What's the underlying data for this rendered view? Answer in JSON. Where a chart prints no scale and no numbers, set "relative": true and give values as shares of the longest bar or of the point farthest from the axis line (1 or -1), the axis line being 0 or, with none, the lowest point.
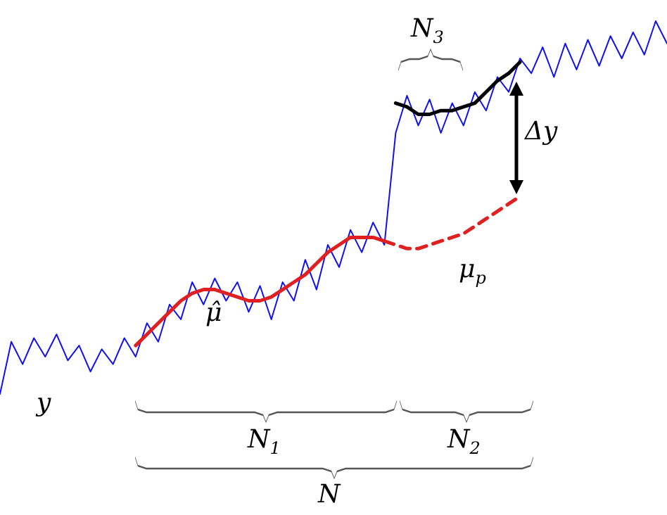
{
  "chart_data": {
    "type": "line",
    "relative": true,
    "marker": "none",
    "grid": false,
    "legend": false,
    "categories": [
      null,
      null,
      null,
      null,
      null,
      null,
      null,
      null,
      null,
      null,
      null,
      null,
      null,
      null,
      null,
      null,
      null,
      null,
      null,
      null,
      null,
      null,
      null,
      null,
      null,
      null,
      null,
      null,
      null,
      null,
      null,
      null,
      null,
      null,
      null,
      null,
      null,
      null,
      null,
      null,
      null,
      null,
      null,
      null,
      null,
      null,
      null,
      null,
      null,
      null,
      null,
      null,
      null,
      null,
      null,
      null,
      null,
      null,
      null,
      null
    ],
    "series": [
      {
        "name": "y",
        "color": "#1010f0",
        "line_style": "solid",
        "values": [
          0,
          0.14,
          0.08,
          0.15,
          0.1,
          0.16,
          0.09,
          0.13,
          0.06,
          0.12,
          0.08,
          0.15,
          0.1,
          0.19,
          0.14,
          0.24,
          0.2,
          0.3,
          0.24,
          0.31,
          0.25,
          0.3,
          0.22,
          0.29,
          0.2,
          0.3,
          0.25,
          0.36,
          0.28,
          0.4,
          0.34,
          0.44,
          0.38,
          0.46,
          0.4,
          0.7,
          0.8,
          0.72,
          0.79,
          0.7,
          0.78,
          0.72,
          0.81,
          0.76,
          0.85,
          0.81,
          0.9,
          0.86,
          0.93,
          0.85,
          0.94,
          0.87,
          0.95,
          0.88,
          0.96,
          0.9,
          0.97,
          0.91,
          1,
          0.94
        ]
      },
      {
        "name": "μ̂",
        "color": "#e02020",
        "line_style": "solid",
        "values": [
          null,
          null,
          null,
          null,
          null,
          null,
          null,
          null,
          null,
          null,
          null,
          null,
          0.13,
          0.16,
          0.19,
          0.22,
          0.25,
          0.27,
          0.28,
          0.28,
          0.27,
          0.26,
          0.25,
          0.25,
          0.26,
          0.28,
          0.3,
          0.32,
          0.35,
          0.38,
          0.4,
          0.42,
          0.42,
          0.42,
          0.41,
          null,
          null,
          null,
          null,
          null,
          null,
          null,
          null,
          null,
          null,
          null,
          null,
          null,
          null,
          null,
          null,
          null,
          null,
          null,
          null,
          null,
          null,
          null,
          null,
          null
        ]
      },
      {
        "name": "μ$_{p}$",
        "color": "#e02020",
        "line_style": "dashed",
        "values": [
          null,
          null,
          null,
          null,
          null,
          null,
          null,
          null,
          null,
          null,
          null,
          null,
          null,
          null,
          null,
          null,
          null,
          null,
          null,
          null,
          null,
          null,
          null,
          null,
          null,
          null,
          null,
          null,
          null,
          null,
          null,
          null,
          null,
          null,
          0.41,
          0.4,
          0.39,
          0.39,
          0.4,
          0.41,
          0.42,
          0.43,
          0.45,
          0.47,
          0.49,
          0.51,
          0.53,
          null,
          null,
          null,
          null,
          null,
          null,
          null,
          null,
          null,
          null,
          null,
          null,
          null
        ]
      },
      {
        "color": "#000000",
        "line_style": "solid",
        "values": [
          null,
          null,
          null,
          null,
          null,
          null,
          null,
          null,
          null,
          null,
          null,
          null,
          null,
          null,
          null,
          null,
          null,
          null,
          null,
          null,
          null,
          null,
          null,
          null,
          null,
          null,
          null,
          null,
          null,
          null,
          null,
          null,
          null,
          null,
          null,
          0.78,
          0.77,
          0.75,
          0.75,
          0.76,
          0.76,
          0.77,
          0.78,
          0.81,
          0.84,
          0.86,
          0.89,
          null,
          null,
          null,
          null,
          null,
          null,
          null,
          null,
          null,
          null,
          null,
          null,
          null
        ]
      }
    ],
    "annotations": [
      "N$_{3}$",
      "Δy",
      "N$_{1}$",
      "N$_{2}$",
      "N"
    ]
  }
}
